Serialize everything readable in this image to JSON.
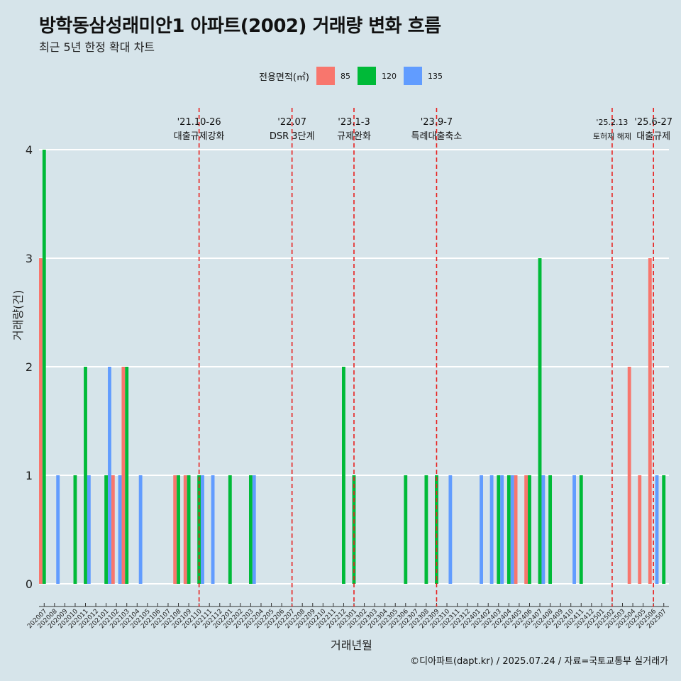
{
  "title": "방학동삼성래미안1 아파트(2002) 거래량 변화 흐름",
  "subtitle": "최근 5년 한정 확대 차트",
  "caption": "©디아파트(dapt.kr) / 2025.07.24 / 자료=국토교통부 실거래가",
  "legend": {
    "title": "전용면적(㎡)",
    "items": [
      {
        "label": "85",
        "color": "#f8766d"
      },
      {
        "label": "120",
        "color": "#00ba38"
      },
      {
        "label": "135",
        "color": "#619cff"
      }
    ]
  },
  "chart_data": {
    "type": "bar",
    "xlabel": "거래년월",
    "ylabel": "거래량(건)",
    "ylim": [
      0,
      4
    ],
    "yticks": [
      0,
      1,
      2,
      3,
      4
    ],
    "categories": [
      "202007",
      "202008",
      "202009",
      "202010",
      "202011",
      "202012",
      "202101",
      "202102",
      "202103",
      "202104",
      "202105",
      "202106",
      "202107",
      "202108",
      "202109",
      "202110",
      "202111",
      "202112",
      "202201",
      "202202",
      "202203",
      "202204",
      "202205",
      "202206",
      "202207",
      "202208",
      "202209",
      "202210",
      "202211",
      "202212",
      "202301",
      "202302",
      "202303",
      "202304",
      "202305",
      "202306",
      "202307",
      "202308",
      "202309",
      "202310",
      "202311",
      "202312",
      "202401",
      "202402",
      "202403",
      "202404",
      "202405",
      "202406",
      "202407",
      "202408",
      "202409",
      "202410",
      "202411",
      "202412",
      "202501",
      "202502",
      "202503",
      "202504",
      "202505",
      "202506",
      "202507"
    ],
    "series": [
      {
        "name": "85",
        "color": "#f8766d",
        "values": [
          3,
          0,
          0,
          0,
          0,
          0,
          0,
          1,
          2,
          0,
          0,
          0,
          0,
          1,
          1,
          0,
          0,
          0,
          0,
          0,
          0,
          0,
          0,
          0,
          0,
          0,
          0,
          0,
          0,
          0,
          0,
          0,
          0,
          0,
          0,
          0,
          0,
          0,
          0,
          0,
          0,
          0,
          0,
          0,
          0,
          0,
          1,
          1,
          0,
          0,
          0,
          0,
          0,
          0,
          0,
          0,
          0,
          2,
          1,
          3,
          0
        ]
      },
      {
        "name": "120",
        "color": "#00ba38",
        "values": [
          4,
          0,
          0,
          1,
          2,
          0,
          1,
          0,
          2,
          0,
          0,
          0,
          0,
          1,
          1,
          1,
          0,
          0,
          1,
          0,
          1,
          0,
          0,
          0,
          0,
          0,
          0,
          0,
          0,
          2,
          1,
          0,
          0,
          0,
          0,
          1,
          0,
          1,
          1,
          0,
          0,
          0,
          0,
          0,
          1,
          1,
          0,
          1,
          3,
          1,
          0,
          0,
          1,
          0,
          0,
          0,
          0,
          0,
          0,
          0,
          1
        ]
      },
      {
        "name": "135",
        "color": "#619cff",
        "values": [
          0,
          1,
          0,
          0,
          1,
          0,
          2,
          1,
          0,
          1,
          0,
          0,
          0,
          0,
          0,
          1,
          1,
          0,
          0,
          0,
          1,
          0,
          0,
          0,
          0,
          0,
          0,
          0,
          0,
          0,
          0,
          0,
          0,
          0,
          0,
          0,
          0,
          0,
          0,
          1,
          0,
          0,
          1,
          1,
          1,
          1,
          0,
          0,
          1,
          0,
          0,
          1,
          0,
          0,
          0,
          0,
          0,
          0,
          0,
          1,
          0
        ]
      }
    ],
    "annotations": [
      {
        "x": "202110",
        "date": "'21.10-26",
        "label": "대출규제강화"
      },
      {
        "x": "202207",
        "date": "'22.07",
        "label": "DSR 3단계"
      },
      {
        "x": "202301",
        "date": "'23.1-3",
        "label": "규제완화"
      },
      {
        "x": "202309",
        "date": "'23.9-7",
        "label": "특례대출축소"
      },
      {
        "x": "202502",
        "date": "'25.2.13",
        "label": "토허제 해제"
      },
      {
        "x": "202506",
        "date": "'25.6-27",
        "label": "대출규제"
      }
    ]
  }
}
